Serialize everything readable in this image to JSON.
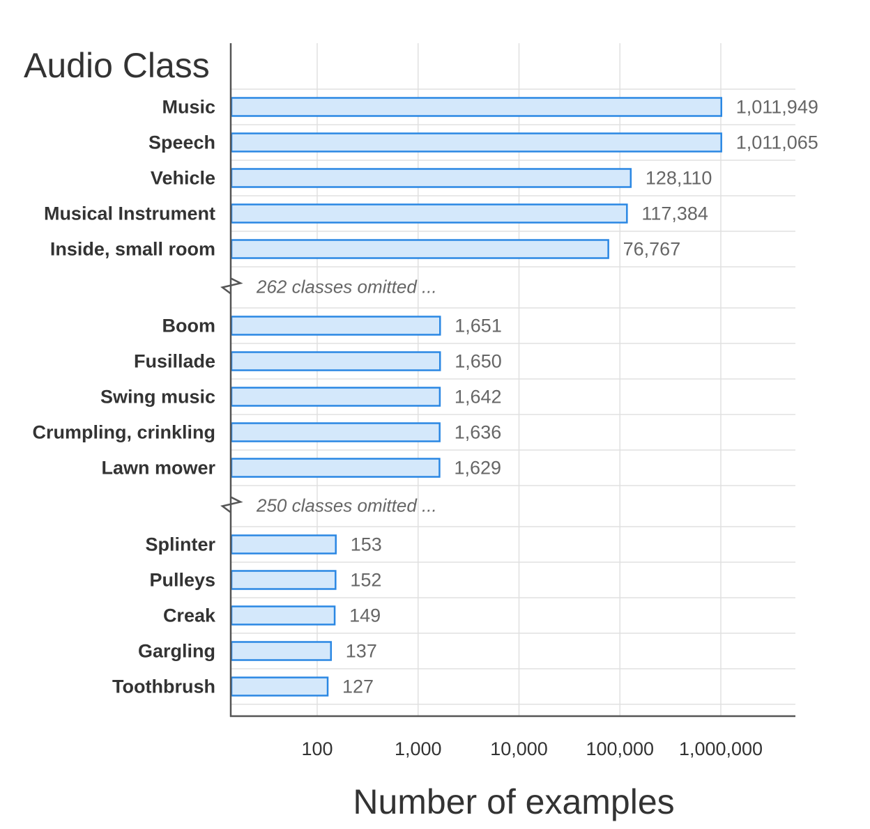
{
  "chart_data": {
    "type": "bar",
    "orientation": "horizontal",
    "title": "Audio Class",
    "xlabel": "Number of examples",
    "ylabel": "",
    "x_scale": "log",
    "xlim": [
      15,
      5000000
    ],
    "x_ticks": [
      {
        "value": 100,
        "label": "100"
      },
      {
        "value": 1000,
        "label": "1,000"
      },
      {
        "value": 10000,
        "label": "10,000"
      },
      {
        "value": 100000,
        "label": "100,000"
      },
      {
        "value": 1000000,
        "label": "1,000,000"
      }
    ],
    "grid": true,
    "colors": {
      "bar_fill": "#d4e8fb",
      "bar_stroke": "#2a87e3",
      "axis": "#555555",
      "grid": "#e0e0e0"
    },
    "rows": [
      {
        "kind": "bar",
        "category": "Music",
        "value": 1011949,
        "label": "1,011,949"
      },
      {
        "kind": "bar",
        "category": "Speech",
        "value": 1011065,
        "label": "1,011,065"
      },
      {
        "kind": "bar",
        "category": "Vehicle",
        "value": 128110,
        "label": "128,110"
      },
      {
        "kind": "bar",
        "category": "Musical Instrument",
        "value": 117384,
        "label": "117,384"
      },
      {
        "kind": "bar",
        "category": "Inside, small room",
        "value": 76767,
        "label": "76,767"
      },
      {
        "kind": "break",
        "text": "262 classes omitted ..."
      },
      {
        "kind": "bar",
        "category": "Boom",
        "value": 1651,
        "label": "1,651"
      },
      {
        "kind": "bar",
        "category": "Fusillade",
        "value": 1650,
        "label": "1,650"
      },
      {
        "kind": "bar",
        "category": "Swing music",
        "value": 1642,
        "label": "1,642"
      },
      {
        "kind": "bar",
        "category": "Crumpling, crinkling",
        "value": 1636,
        "label": "1,636"
      },
      {
        "kind": "bar",
        "category": "Lawn mower",
        "value": 1629,
        "label": "1,629"
      },
      {
        "kind": "break",
        "text": "250 classes omitted ..."
      },
      {
        "kind": "bar",
        "category": "Splinter",
        "value": 153,
        "label": "153"
      },
      {
        "kind": "bar",
        "category": "Pulleys",
        "value": 152,
        "label": "152"
      },
      {
        "kind": "bar",
        "category": "Creak",
        "value": 149,
        "label": "149"
      },
      {
        "kind": "bar",
        "category": "Gargling",
        "value": 137,
        "label": "137"
      },
      {
        "kind": "bar",
        "category": "Toothbrush",
        "value": 127,
        "label": "127"
      }
    ]
  }
}
